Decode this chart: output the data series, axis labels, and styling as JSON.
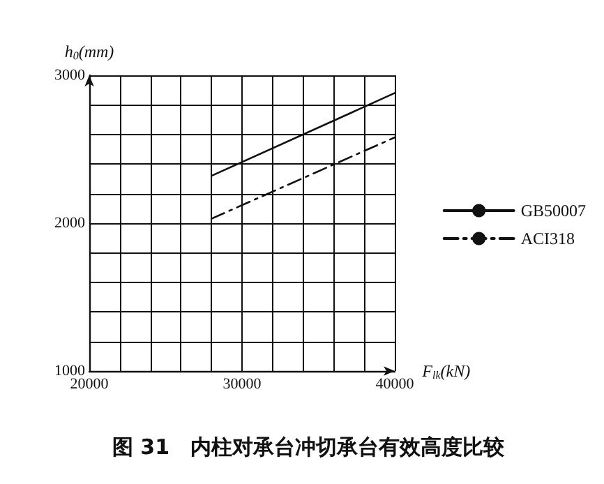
{
  "chart_data": {
    "type": "line",
    "title": "图 31　内柱对承台冲切承台有效高度比较",
    "xlabel": "F$_{lk}$(kN)",
    "ylabel": "h$_{0}$(mm)",
    "x": [
      28000,
      40000
    ],
    "series": [
      {
        "name": "GB50007",
        "color": "#111111",
        "values": [
          2320,
          2880
        ],
        "line_style": "solid"
      },
      {
        "name": "ACI318",
        "color": "#111111",
        "values": [
          2030,
          2580
        ],
        "line_style": "dashed"
      }
    ],
    "xlim": [
      20000,
      40000
    ],
    "xticks": [
      20000,
      {
        "value": 22000,
        "label": null
      },
      {
        "value": 24000,
        "label": null
      },
      {
        "value": 26000,
        "label": null
      },
      {
        "value": 28000,
        "label": null
      },
      30000,
      {
        "value": 32000,
        "label": null
      },
      {
        "value": 34000,
        "label": null
      },
      {
        "value": 36000,
        "label": null
      },
      {
        "value": 38000,
        "label": null
      },
      40000
    ],
    "ylim": [
      1000,
      3000
    ],
    "yticks": [
      1000,
      {
        "value": 1200,
        "label": null
      },
      {
        "value": 1400,
        "label": null
      },
      {
        "value": 1600,
        "label": null
      },
      {
        "value": 1800,
        "label": null
      },
      2000,
      {
        "value": 2200,
        "label": null
      },
      {
        "value": 2400,
        "label": null
      },
      {
        "value": 2600,
        "label": null
      },
      {
        "value": 2800,
        "label": null
      },
      3000
    ],
    "grid": true,
    "legend": "right",
    "marker": "none"
  }
}
